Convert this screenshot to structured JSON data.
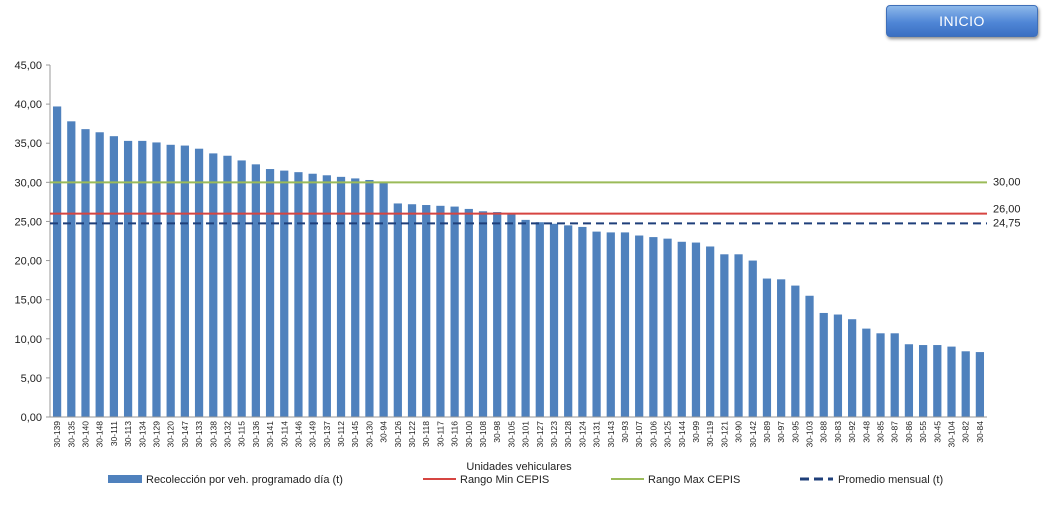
{
  "header": {
    "inicio_label": "INICIO"
  },
  "colors": {
    "bar": "#4f81bd",
    "rango_min": "#d64541",
    "rango_max": "#9bbb59",
    "promedio": "#1f3f7a"
  },
  "chart_data": {
    "type": "bar",
    "xlabel": "Unidades vehiculares",
    "ylabel": "",
    "ylim": [
      0,
      45
    ],
    "ytick_step": 5,
    "ytick_labels": [
      "0,00",
      "5,00",
      "10,00",
      "15,00",
      "20,00",
      "25,00",
      "30,00",
      "35,00",
      "40,00",
      "45,00"
    ],
    "grid": false,
    "legend_position": "bottom",
    "categories": [
      "30-139",
      "30-135",
      "30-140",
      "30-148",
      "30-111",
      "30-113",
      "30-134",
      "30-129",
      "30-120",
      "30-147",
      "30-133",
      "30-138",
      "30-132",
      "30-115",
      "30-136",
      "30-141",
      "30-114",
      "30-146",
      "30-149",
      "30-137",
      "30-112",
      "30-145",
      "30-130",
      "30-94",
      "30-126",
      "30-122",
      "30-118",
      "30-117",
      "30-116",
      "30-100",
      "30-108",
      "30-98",
      "30-105",
      "30-101",
      "30-127",
      "30-123",
      "30-128",
      "30-124",
      "30-131",
      "30-143",
      "30-93",
      "30-107",
      "30-106",
      "30-125",
      "30-144",
      "30-99",
      "30-119",
      "30-121",
      "30-90",
      "30-142",
      "30-89",
      "30-97",
      "30-95",
      "30-103",
      "30-88",
      "30-83",
      "30-92",
      "30-48",
      "30-85",
      "30-87",
      "30-86",
      "30-55",
      "30-45",
      "30-104",
      "30-82",
      "30-84"
    ],
    "series": [
      {
        "name": "Recolección por veh. programado día (t)",
        "values": [
          39.7,
          37.8,
          36.8,
          36.4,
          35.9,
          35.3,
          35.3,
          35.1,
          34.8,
          34.7,
          34.3,
          33.7,
          33.4,
          32.8,
          32.3,
          31.7,
          31.5,
          31.3,
          31.1,
          30.9,
          30.7,
          30.5,
          30.3,
          30.0,
          27.3,
          27.2,
          27.1,
          27.0,
          26.9,
          26.6,
          26.3,
          26.2,
          25.9,
          25.2,
          24.9,
          24.7,
          24.5,
          24.3,
          23.7,
          23.6,
          23.6,
          23.2,
          23.0,
          22.8,
          22.4,
          22.3,
          21.8,
          20.8,
          20.8,
          20.0,
          17.7,
          17.6,
          16.8,
          15.5,
          13.3,
          13.1,
          12.5,
          11.3,
          10.7,
          10.7,
          9.3,
          9.2,
          9.2,
          9.0,
          8.4,
          8.3
        ]
      }
    ],
    "reference_lines": [
      {
        "name": "Rango Min CEPIS",
        "value": 26.0,
        "label": "26,00",
        "style": "solid",
        "color_key": "rango_min"
      },
      {
        "name": "Rango Max CEPIS",
        "value": 30.0,
        "label": "30,00",
        "style": "solid",
        "color_key": "rango_max"
      },
      {
        "name": "Promedio mensual (t)",
        "value": 24.75,
        "label": "24,75",
        "style": "dashed",
        "color_key": "promedio"
      }
    ]
  }
}
